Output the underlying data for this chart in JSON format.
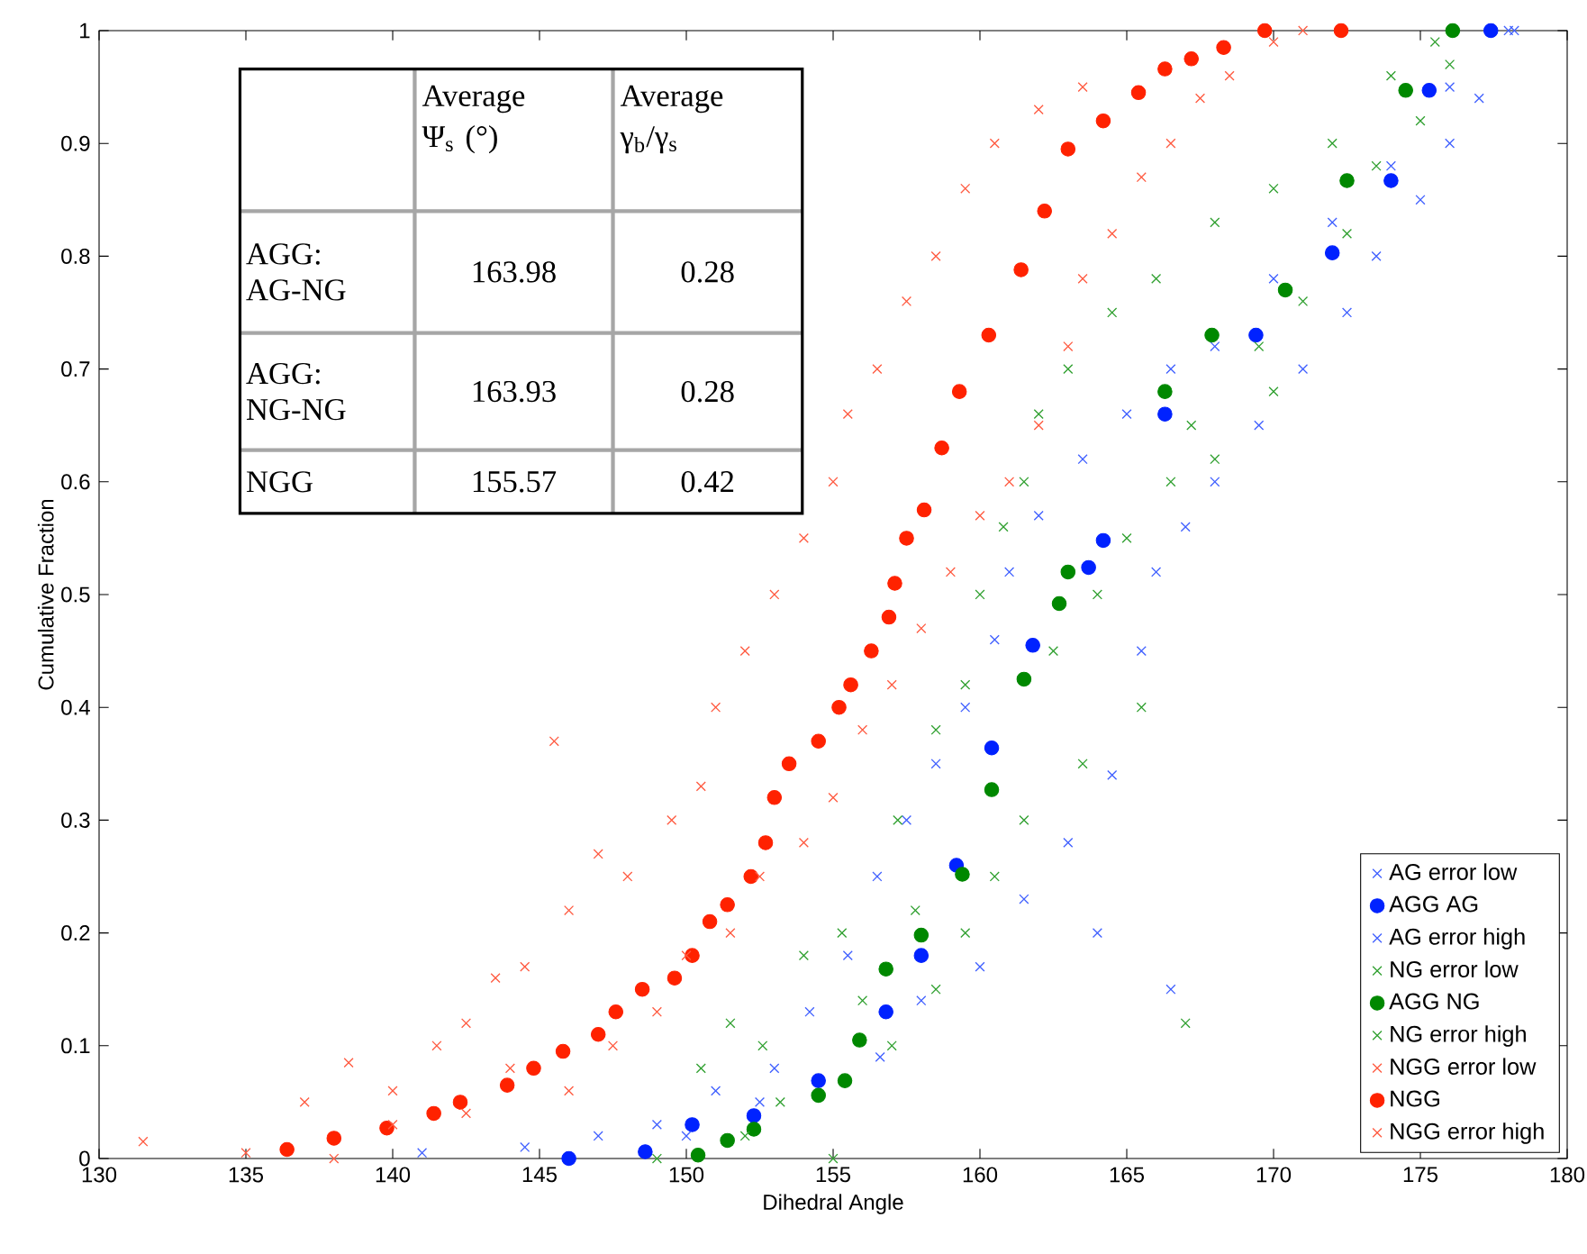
{
  "chart_data": {
    "type": "scatter",
    "xlabel": "Dihedral Angle",
    "ylabel": "Cumulative Fraction",
    "xlim": [
      130,
      180
    ],
    "ylim": [
      0,
      1
    ],
    "xticks": [
      130,
      135,
      140,
      145,
      150,
      155,
      160,
      165,
      170,
      175,
      180
    ],
    "yticks": [
      0,
      0.1,
      0.2,
      0.3,
      0.4,
      0.5,
      0.6,
      0.7,
      0.8,
      0.9,
      1
    ],
    "legend": "bottom right",
    "annotations": [
      "Average Ψ$_{s}$ (°)",
      "Average γ$_{b}$/γ$_{s}$",
      "AGG: AG-NG",
      "163.98",
      "0.28",
      "AGG: NG-NG",
      "163.93",
      "0.28",
      "NGG",
      "155.57",
      "0.42"
    ],
    "series": [
      {
        "name": "AG error low",
        "marker": "cross",
        "color": "#4060ff",
        "x": [
          141,
          144.5,
          147,
          149,
          151,
          153,
          154.2,
          155.5,
          156.5,
          157.5,
          158.5,
          159.5,
          160.5,
          161,
          162,
          163.5,
          165,
          166.5,
          168,
          170,
          172,
          174,
          176,
          178.2
        ],
        "values": [
          0.005,
          0.01,
          0.02,
          0.03,
          0.06,
          0.08,
          0.13,
          0.18,
          0.25,
          0.3,
          0.35,
          0.4,
          0.46,
          0.52,
          0.57,
          0.62,
          0.66,
          0.7,
          0.72,
          0.78,
          0.83,
          0.88,
          0.95,
          1.0
        ]
      },
      {
        "name": "AGG AG",
        "marker": "circle",
        "color": "#0022ff",
        "x": [
          146,
          148.6,
          150.2,
          152.3,
          154.5,
          156.8,
          158.0,
          159.2,
          160.4,
          161.8,
          163.7,
          164.2,
          166.3,
          169.4,
          172.0,
          174.0,
          175.3,
          177.4
        ],
        "values": [
          0.0,
          0.006,
          0.03,
          0.038,
          0.069,
          0.13,
          0.18,
          0.26,
          0.364,
          0.455,
          0.524,
          0.548,
          0.66,
          0.73,
          0.803,
          0.867,
          0.947,
          1.0
        ]
      },
      {
        "name": "AG error high",
        "marker": "cross",
        "color": "#4060ff",
        "x": [
          150,
          152.5,
          156.6,
          158,
          160,
          161.5,
          163,
          164.5,
          165.5,
          166,
          167,
          168,
          169.5,
          171,
          172.5,
          173.5,
          175,
          176,
          177,
          178,
          166.5,
          164
        ],
        "values": [
          0.02,
          0.05,
          0.09,
          0.14,
          0.17,
          0.23,
          0.28,
          0.34,
          0.45,
          0.52,
          0.56,
          0.6,
          0.65,
          0.7,
          0.75,
          0.8,
          0.85,
          0.9,
          0.94,
          1.0,
          0.15,
          0.2
        ]
      },
      {
        "name": "NG error low",
        "marker": "cross",
        "color": "#30a030",
        "x": [
          149,
          150.5,
          151.5,
          152.6,
          153.2,
          154,
          155.3,
          156,
          157.2,
          157.8,
          158.5,
          159.5,
          160,
          160.8,
          161.5,
          162,
          163,
          164.5,
          166,
          168,
          170,
          172,
          174,
          175.5
        ],
        "values": [
          0.0,
          0.08,
          0.12,
          0.1,
          0.05,
          0.18,
          0.2,
          0.14,
          0.3,
          0.22,
          0.38,
          0.42,
          0.5,
          0.56,
          0.6,
          0.66,
          0.7,
          0.75,
          0.78,
          0.83,
          0.86,
          0.9,
          0.96,
          0.99
        ]
      },
      {
        "name": "AGG NG",
        "marker": "circle",
        "color": "#008800",
        "x": [
          150.4,
          151.4,
          152.3,
          154.5,
          155.4,
          155.9,
          156.8,
          158.0,
          159.4,
          160.4,
          161.5,
          162.7,
          163.0,
          166.3,
          167.9,
          170.4,
          172.5,
          174.5,
          176.1
        ],
        "values": [
          0.003,
          0.016,
          0.026,
          0.056,
          0.069,
          0.105,
          0.168,
          0.198,
          0.252,
          0.327,
          0.425,
          0.492,
          0.52,
          0.68,
          0.73,
          0.77,
          0.867,
          0.947,
          1.0
        ]
      },
      {
        "name": "NG error high",
        "marker": "cross",
        "color": "#30a030",
        "x": [
          152,
          155,
          157,
          158.5,
          159.5,
          160.5,
          161.5,
          163.5,
          162.5,
          164,
          165,
          166.5,
          167.2,
          168,
          169.5,
          170,
          171,
          172.5,
          173.5,
          175,
          176,
          167,
          165.5
        ],
        "values": [
          0.02,
          0.0,
          0.1,
          0.15,
          0.2,
          0.25,
          0.3,
          0.35,
          0.45,
          0.5,
          0.55,
          0.6,
          0.65,
          0.62,
          0.72,
          0.68,
          0.76,
          0.82,
          0.88,
          0.92,
          0.97,
          0.12,
          0.4
        ]
      },
      {
        "name": "NGG error low",
        "marker": "cross",
        "color": "#ff5a40",
        "x": [
          131.5,
          135,
          137,
          138.5,
          140,
          141.5,
          142.5,
          143.5,
          144.5,
          145.5,
          146,
          147,
          148,
          149.5,
          150.5,
          151,
          152,
          153,
          154,
          155,
          155.5,
          156.5,
          157.5,
          158.5,
          159.5,
          160.5,
          162,
          163.5
        ],
        "values": [
          0.015,
          0.005,
          0.05,
          0.085,
          0.06,
          0.1,
          0.12,
          0.16,
          0.17,
          0.37,
          0.22,
          0.27,
          0.25,
          0.3,
          0.33,
          0.4,
          0.45,
          0.5,
          0.55,
          0.6,
          0.66,
          0.7,
          0.76,
          0.8,
          0.86,
          0.9,
          0.93,
          0.95
        ]
      },
      {
        "name": "NGG",
        "marker": "circle",
        "color": "#ff2200",
        "x": [
          136.4,
          138,
          139.8,
          141.4,
          142.3,
          143.9,
          144.8,
          145.8,
          147.0,
          147.6,
          148.5,
          149.6,
          150.2,
          150.8,
          151.4,
          152.2,
          152.7,
          153.0,
          153.5,
          154.5,
          155.2,
          155.6,
          156.3,
          156.9,
          157.1,
          157.5,
          158.1,
          158.7,
          159.3,
          160.3,
          161.4,
          162.2,
          163.0,
          164.2,
          165.4,
          166.3,
          167.2,
          168.3,
          169.7,
          172.3
        ],
        "values": [
          0.008,
          0.018,
          0.027,
          0.04,
          0.05,
          0.065,
          0.08,
          0.095,
          0.11,
          0.13,
          0.15,
          0.16,
          0.18,
          0.21,
          0.225,
          0.25,
          0.28,
          0.32,
          0.35,
          0.37,
          0.4,
          0.42,
          0.45,
          0.48,
          0.51,
          0.55,
          0.575,
          0.63,
          0.68,
          0.73,
          0.788,
          0.84,
          0.895,
          0.92,
          0.945,
          0.966,
          0.975,
          0.985,
          1.0,
          1.0
        ]
      },
      {
        "name": "NGG error high",
        "marker": "cross",
        "color": "#ff5a40",
        "x": [
          138,
          140,
          142.5,
          144,
          146,
          147.5,
          149,
          150,
          151.5,
          152.5,
          154,
          155,
          156,
          157,
          158,
          159,
          160,
          161,
          162,
          163,
          163.5,
          164.5,
          165.5,
          166.5,
          167.5,
          168.5,
          170,
          171
        ],
        "values": [
          0.0,
          0.03,
          0.04,
          0.08,
          0.06,
          0.1,
          0.13,
          0.18,
          0.2,
          0.25,
          0.28,
          0.32,
          0.38,
          0.42,
          0.47,
          0.52,
          0.57,
          0.6,
          0.65,
          0.72,
          0.78,
          0.82,
          0.87,
          0.9,
          0.94,
          0.96,
          0.99,
          1.0
        ]
      }
    ]
  }
}
